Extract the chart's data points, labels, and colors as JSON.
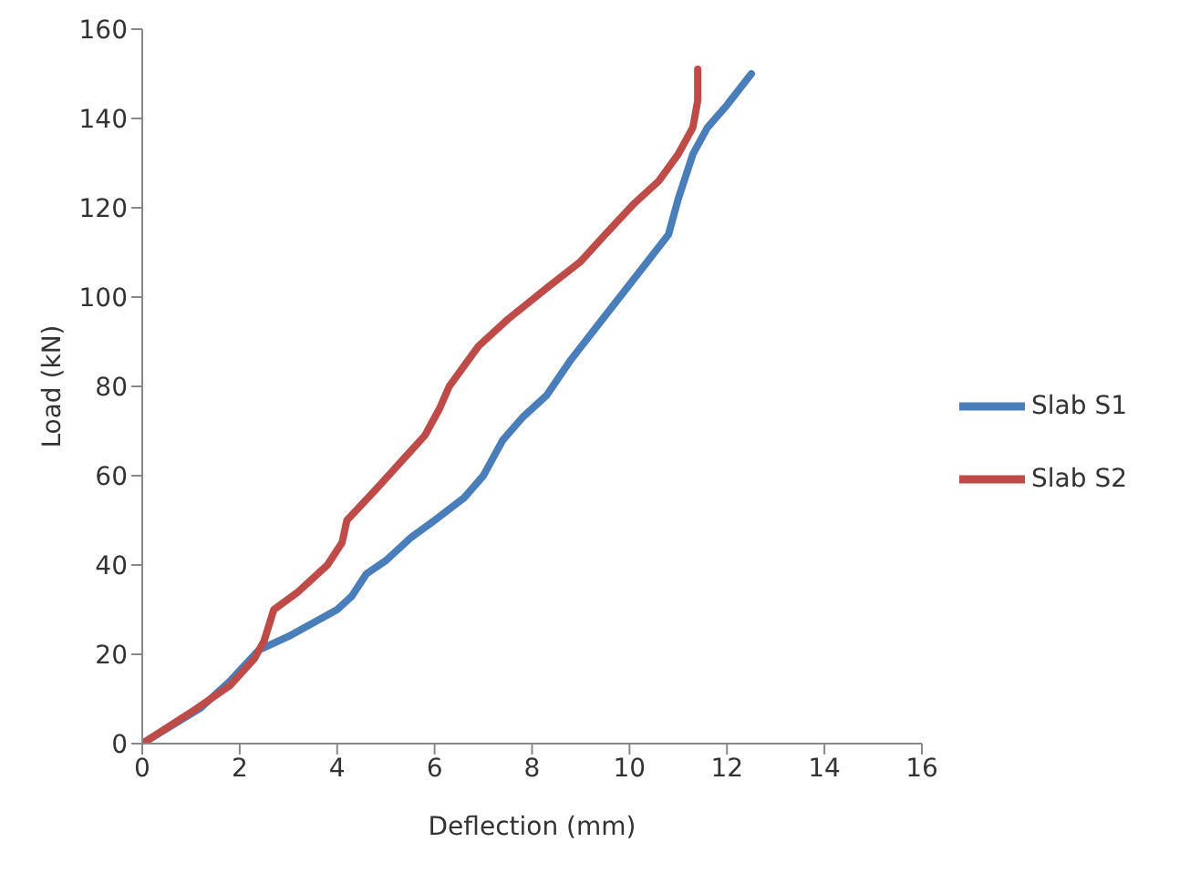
{
  "chart_data": {
    "type": "line",
    "xlabel": "Deflection (mm)",
    "ylabel": "Load (kN)",
    "xlim": [
      0,
      16
    ],
    "xticks": [
      0,
      2,
      4,
      6,
      8,
      10,
      12,
      14,
      16
    ],
    "ylim": [
      0,
      160
    ],
    "yticks": [
      0,
      20,
      40,
      60,
      80,
      100,
      120,
      140,
      160
    ],
    "grid": false,
    "legend": "right",
    "marker": "none",
    "line_style": "solid",
    "series": [
      {
        "name": "Slab S1",
        "color": "#4a7ebb",
        "x": [
          0,
          1.2,
          1.8,
          2.4,
          3,
          4,
          4.3,
          4.6,
          5,
          5.5,
          6,
          6.6,
          7,
          7.4,
          7.8,
          8.3,
          8.8,
          9.3,
          9.8,
          10.3,
          10.8,
          11,
          11.3,
          11.6,
          12,
          12.5
        ],
        "values": [
          0,
          8,
          14,
          21,
          24,
          30,
          33,
          38,
          41,
          46,
          50,
          55,
          60,
          68,
          73,
          78,
          86,
          93,
          100,
          107,
          114,
          122,
          132,
          138,
          143,
          150
        ]
      },
      {
        "name": "Slab S2",
        "color": "#be4b48",
        "x": [
          0,
          1,
          1.8,
          2.3,
          2.5,
          2.7,
          3.2,
          3.8,
          4.1,
          4.2,
          4.8,
          5.3,
          5.8,
          6.1,
          6.3,
          6.9,
          7.5,
          8.3,
          9,
          9.5,
          10.1,
          10.6,
          11,
          11.3,
          11.4,
          11.4
        ],
        "values": [
          0,
          7,
          13,
          19,
          23,
          30,
          34,
          40,
          45,
          50,
          57,
          63,
          69,
          75,
          80,
          89,
          95,
          102,
          108,
          114,
          121,
          126,
          132,
          138,
          144,
          151
        ]
      }
    ]
  }
}
